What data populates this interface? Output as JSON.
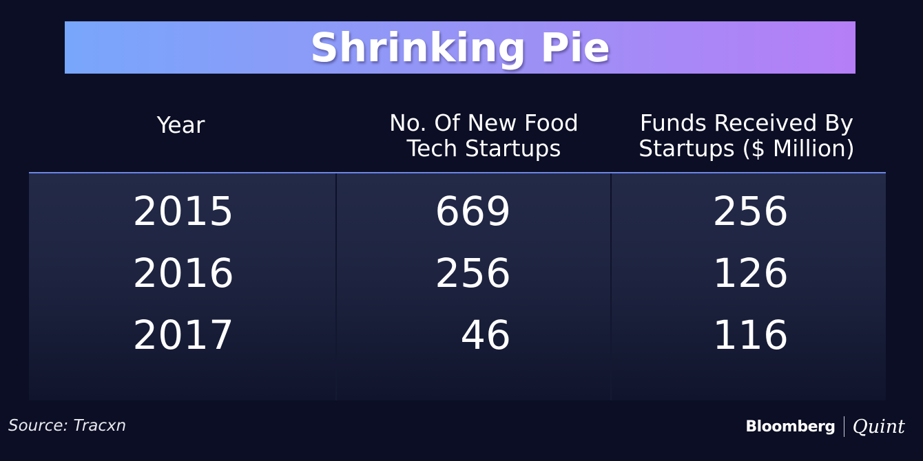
{
  "chart_data": {
    "type": "table",
    "title": "Shrinking Pie",
    "columns": [
      "Year",
      "No. Of New Food Tech Startups",
      "Funds Received By Startups ($ Million)"
    ],
    "header_lines": {
      "year": [
        "Year"
      ],
      "count": [
        "No. Of New Food",
        "Tech Startups"
      ],
      "funds": [
        "Funds Received By",
        "Startups ($ Million)"
      ]
    },
    "rows": [
      {
        "year": "2015",
        "new_startups": "669",
        "funds": "256"
      },
      {
        "year": "2016",
        "new_startups": "256",
        "funds": "126"
      },
      {
        "year": "2017",
        "new_startups": "46",
        "funds": "116"
      }
    ]
  },
  "footer": {
    "source": "Source: Tracxn",
    "brand_primary": "Bloomberg",
    "brand_secondary": "Quint"
  },
  "colors": {
    "background": "#0b0e24",
    "banner_start": "#78a6fb",
    "banner_end": "#b57ef7",
    "header_rule": "#6d86e6"
  }
}
